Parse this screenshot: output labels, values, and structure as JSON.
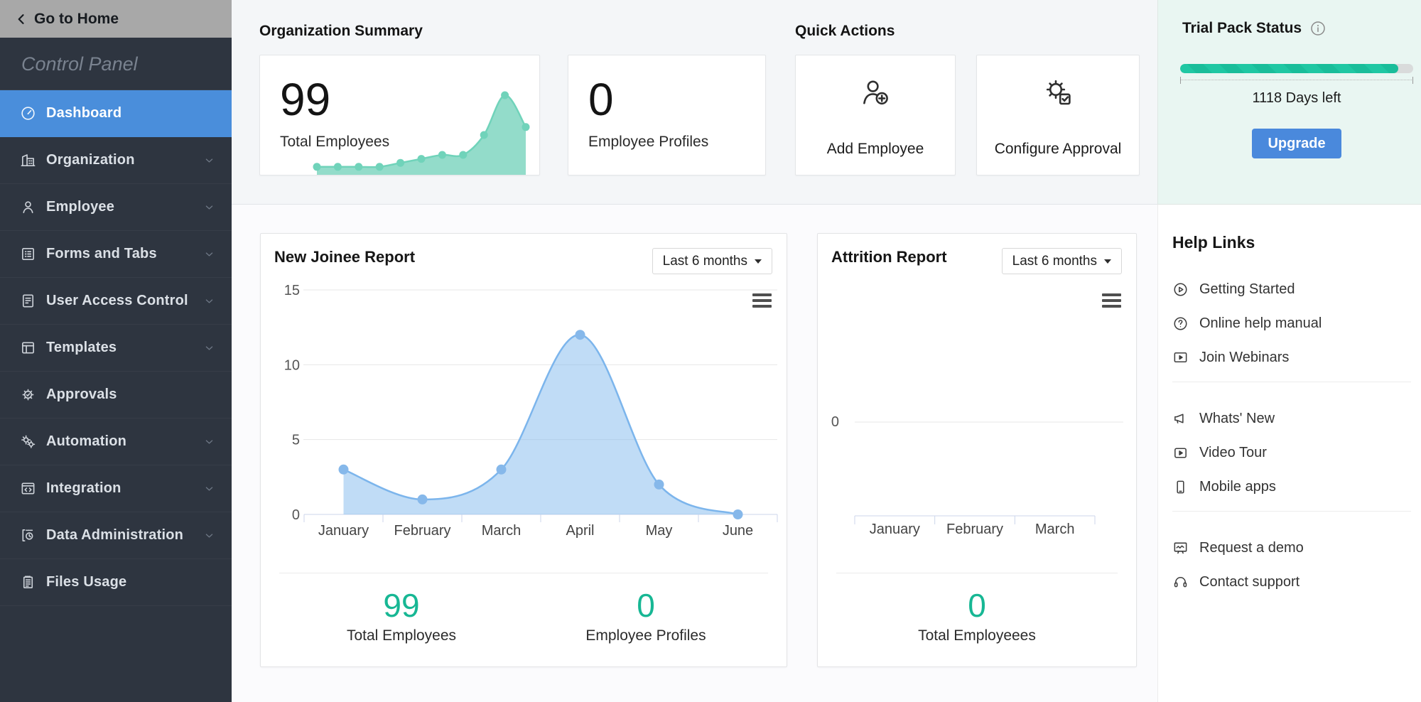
{
  "sidebar": {
    "go_home_label": "Go to Home",
    "title": "Control Panel",
    "items": [
      {
        "label": "Dashboard",
        "icon": "dashboard-icon",
        "active": true,
        "chevron": false
      },
      {
        "label": "Organization",
        "icon": "organization-icon",
        "active": false,
        "chevron": true
      },
      {
        "label": "Employee",
        "icon": "employee-icon",
        "active": false,
        "chevron": true
      },
      {
        "label": "Forms and Tabs",
        "icon": "forms-and-tabs-icon",
        "active": false,
        "chevron": true
      },
      {
        "label": "User Access Control",
        "icon": "user-access-control-icon",
        "active": false,
        "chevron": true
      },
      {
        "label": "Templates",
        "icon": "templates-icon",
        "active": false,
        "chevron": true
      },
      {
        "label": "Approvals",
        "icon": "approvals-icon",
        "active": false,
        "chevron": false
      },
      {
        "label": "Automation",
        "icon": "automation-icon",
        "active": false,
        "chevron": true
      },
      {
        "label": "Integration",
        "icon": "integration-icon",
        "active": false,
        "chevron": true
      },
      {
        "label": "Data Administration",
        "icon": "data-administration-icon",
        "active": false,
        "chevron": true
      },
      {
        "label": "Files Usage",
        "icon": "files-usage-icon",
        "active": false,
        "chevron": false
      }
    ]
  },
  "org_summary": {
    "heading": "Organization Summary",
    "cards": [
      {
        "value": "99",
        "label": "Total Employees"
      },
      {
        "value": "0",
        "label": "Employee Profiles"
      }
    ]
  },
  "quick_actions": {
    "heading": "Quick Actions",
    "actions": [
      {
        "label": "Add Employee",
        "icon": "add-employee-icon"
      },
      {
        "label": "Configure Approval",
        "icon": "configure-approval-icon"
      }
    ]
  },
  "trial_pack": {
    "title": "Trial Pack Status",
    "days_left": "1118 Days left",
    "progress_percent": 93.5,
    "upgrade_label": "Upgrade",
    "progress_color": "#1fc7a3",
    "progress_stripe_color": "#19bd9a",
    "button_color": "#4a89dc"
  },
  "help_links": {
    "heading": "Help Links",
    "groups": [
      [
        {
          "label": "Getting Started",
          "icon": "getting-started-icon"
        },
        {
          "label": "Online help manual",
          "icon": "online-help-icon"
        },
        {
          "label": "Join Webinars",
          "icon": "join-webinars-icon"
        }
      ],
      [
        {
          "label": "Whats' New",
          "icon": "whats-new-icon"
        },
        {
          "label": "Video Tour",
          "icon": "video-tour-icon"
        },
        {
          "label": "Mobile apps",
          "icon": "mobile-apps-icon"
        }
      ],
      [
        {
          "label": "Request a demo",
          "icon": "request-demo-icon"
        },
        {
          "label": "Contact support",
          "icon": "contact-support-icon"
        }
      ]
    ]
  },
  "new_joinee_card": {
    "title": "New Joinee Report",
    "range_label": "Last 6 months",
    "stats": [
      {
        "value": "99",
        "label": "Total Employees"
      },
      {
        "value": "0",
        "label": "Employee Profiles"
      }
    ]
  },
  "attrition_card": {
    "title": "Attrition Report",
    "range_label": "Last 6 months",
    "stats": [
      {
        "value": "0",
        "label": "Total Employeees"
      }
    ]
  },
  "theme": {
    "sidebar_bg": "#2e3540",
    "active_item_blue": "#4a8edb",
    "teal_stat": "#17b794",
    "chart_blue": "#7cb5ec",
    "sparkline_teal": "#70d3ba",
    "mint_panel_bg": "#e9f6f2"
  },
  "chart_data": [
    {
      "id": "new_joinee",
      "type": "area",
      "title": "New Joinee Report",
      "categories": [
        "January",
        "February",
        "March",
        "April",
        "May",
        "June"
      ],
      "values": [
        3,
        1,
        3,
        12,
        2,
        0
      ],
      "ylim": [
        0,
        15
      ],
      "yticks": [
        0,
        5,
        10,
        15
      ],
      "grid": true,
      "legend": "none",
      "series_color": "#7cb5ec",
      "fill_color": "rgba(124,181,236,0.48)",
      "marker_color": "#86b8ea",
      "range_selector": "Last 6 months"
    },
    {
      "id": "attrition",
      "type": "area",
      "title": "Attrition Report",
      "categories": [
        "January",
        "February",
        "March"
      ],
      "values": [],
      "ylim": [
        0,
        0
      ],
      "yticks": [
        0
      ],
      "grid": true,
      "legend": "none",
      "series_color": "#7cb5ec",
      "note": "empty chart, only zero line shown",
      "range_selector": "Last 6 months"
    },
    {
      "id": "total_employees_sparkline",
      "type": "area",
      "title": "Total Employees trend",
      "categories": [],
      "values": [
        1,
        1,
        1,
        1,
        1.5,
        2,
        2.5,
        2.5,
        5,
        10,
        6
      ],
      "ylim": [
        0,
        10.5
      ],
      "series_color": "#70d3ba",
      "fill_color": "rgba(116,210,187,0.78)"
    }
  ]
}
